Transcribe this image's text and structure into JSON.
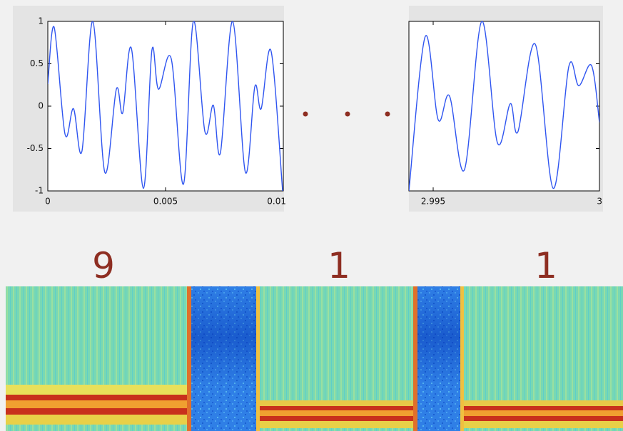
{
  "chart_data": [
    {
      "type": "line",
      "color": "#2f55f0",
      "xlim": [
        0,
        0.01
      ],
      "xticks": [
        0,
        0.005,
        0.01
      ],
      "ylim": [
        -1,
        1
      ],
      "yticks": [
        -1,
        -0.5,
        0,
        0.5,
        1
      ],
      "x": [
        0,
        0.00027,
        0.00073,
        0.00109,
        0.00145,
        0.00191,
        0.00242,
        0.00291,
        0.00318,
        0.00355,
        0.00406,
        0.00442,
        0.0047,
        0.00524,
        0.00576,
        0.00618,
        0.00667,
        0.00703,
        0.00733,
        0.00785,
        0.00839,
        0.00879,
        0.00906,
        0.00948,
        0.00997
      ],
      "values": [
        0.26,
        0.93,
        -0.33,
        -0.03,
        -0.53,
        1.0,
        -0.78,
        0.2,
        -0.08,
        0.68,
        -0.97,
        0.66,
        0.2,
        0.56,
        -0.92,
        1.0,
        -0.3,
        0.01,
        -0.55,
        1.0,
        -0.78,
        0.23,
        -0.03,
        0.65,
        -1.0
      ]
    },
    {
      "type": "line",
      "color": "#2f55f0",
      "xlim": [
        2.99427,
        3
      ],
      "xticks": [
        2.995,
        3
      ],
      "ylim": [
        -1,
        1
      ],
      "yticks": [
        -1,
        -0.5,
        0,
        0.5,
        1
      ],
      "x": [
        2.99427,
        2.99476,
        2.99515,
        2.99549,
        2.99594,
        2.99646,
        2.99693,
        2.99732,
        2.99755,
        2.99807,
        2.99861,
        2.99908,
        2.99938,
        2.99976,
        3
      ],
      "values": [
        -1.0,
        0.82,
        -0.16,
        0.12,
        -0.75,
        1.0,
        -0.43,
        0.03,
        -0.3,
        0.73,
        -0.97,
        0.47,
        0.24,
        0.48,
        -0.19
      ]
    }
  ],
  "digits": [
    "9",
    "1",
    "1"
  ]
}
